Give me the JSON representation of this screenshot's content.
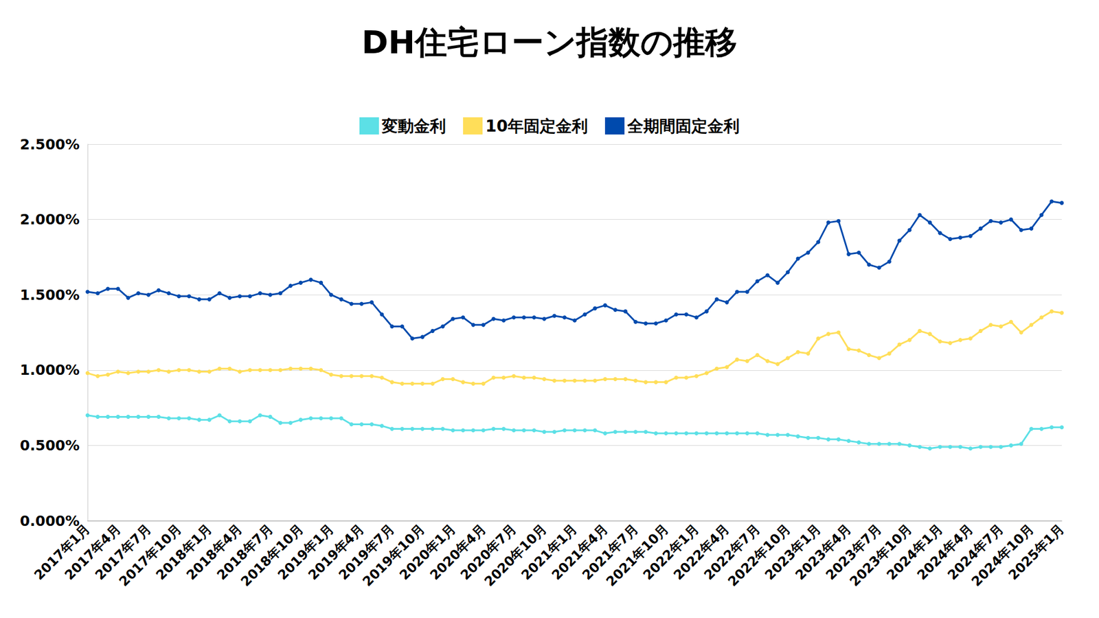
{
  "chart_data": {
    "type": "line",
    "title": "DH住宅ローン指数の推移",
    "categories": [
      "2017年1月",
      null,
      null,
      "2017年4月",
      null,
      null,
      "2017年7月",
      null,
      null,
      "2017年10月",
      null,
      null,
      "2018年1月",
      null,
      null,
      "2018年4月",
      null,
      null,
      "2018年7月",
      null,
      null,
      "2018年10月",
      null,
      null,
      "2019年1月",
      null,
      null,
      "2019年4月",
      null,
      null,
      "2019年7月",
      null,
      null,
      "2019年10月",
      null,
      null,
      "2020年1月",
      null,
      null,
      "2020年4月",
      null,
      null,
      "2020年7月",
      null,
      null,
      "2020年10月",
      null,
      null,
      "2021年1月",
      null,
      null,
      "2021年4月",
      null,
      null,
      "2021年7月",
      null,
      null,
      "2021年10月",
      null,
      null,
      "2022年1月",
      null,
      null,
      "2022年4月",
      null,
      null,
      "2022年7月",
      null,
      null,
      "2022年10月",
      null,
      null,
      "2023年1月",
      null,
      null,
      "2023年4月",
      null,
      null,
      "2023年7月",
      null,
      null,
      "2023年10月",
      null,
      null,
      "2024年1月",
      null,
      null,
      "2024年4月",
      null,
      null,
      "2024年7月",
      null,
      null,
      "2024年10月",
      null,
      null,
      "2025年1月"
    ],
    "series": [
      {
        "name": "変動金利",
        "color": "#5ce0e6",
        "values": [
          0.7,
          0.69,
          0.69,
          0.69,
          0.69,
          0.69,
          0.69,
          0.69,
          0.68,
          0.68,
          0.68,
          0.67,
          0.67,
          0.7,
          0.66,
          0.66,
          0.66,
          0.7,
          0.69,
          0.65,
          0.65,
          0.67,
          0.68,
          0.68,
          0.68,
          0.68,
          0.64,
          0.64,
          0.64,
          0.63,
          0.61,
          0.61,
          0.61,
          0.61,
          0.61,
          0.61,
          0.6,
          0.6,
          0.6,
          0.6,
          0.61,
          0.61,
          0.6,
          0.6,
          0.6,
          0.59,
          0.59,
          0.6,
          0.6,
          0.6,
          0.6,
          0.58,
          0.59,
          0.59,
          0.59,
          0.59,
          0.58,
          0.58,
          0.58,
          0.58,
          0.58,
          0.58,
          0.58,
          0.58,
          0.58,
          0.58,
          0.58,
          0.57,
          0.57,
          0.57,
          0.56,
          0.55,
          0.55,
          0.54,
          0.54,
          0.53,
          0.52,
          0.51,
          0.51,
          0.51,
          0.51,
          0.5,
          0.49,
          0.48,
          0.49,
          0.49,
          0.49,
          0.48,
          0.49,
          0.49,
          0.49,
          0.5,
          0.51,
          0.61,
          0.61,
          0.62,
          0.62
        ]
      },
      {
        "name": "10年固定金利",
        "color": "#ffde59",
        "values": [
          0.98,
          0.96,
          0.97,
          0.99,
          0.98,
          0.99,
          0.99,
          1.0,
          0.99,
          1.0,
          1.0,
          0.99,
          0.99,
          1.01,
          1.01,
          0.99,
          1.0,
          1.0,
          1.0,
          1.0,
          1.01,
          1.01,
          1.01,
          1.0,
          0.97,
          0.96,
          0.96,
          0.96,
          0.96,
          0.95,
          0.92,
          0.91,
          0.91,
          0.91,
          0.91,
          0.94,
          0.94,
          0.92,
          0.91,
          0.91,
          0.95,
          0.95,
          0.96,
          0.95,
          0.95,
          0.94,
          0.93,
          0.93,
          0.93,
          0.93,
          0.93,
          0.94,
          0.94,
          0.94,
          0.93,
          0.92,
          0.92,
          0.92,
          0.95,
          0.95,
          0.96,
          0.98,
          1.01,
          1.02,
          1.07,
          1.06,
          1.1,
          1.06,
          1.04,
          1.08,
          1.12,
          1.11,
          1.21,
          1.24,
          1.25,
          1.14,
          1.13,
          1.1,
          1.08,
          1.11,
          1.17,
          1.2,
          1.26,
          1.24,
          1.19,
          1.18,
          1.2,
          1.21,
          1.26,
          1.3,
          1.29,
          1.32,
          1.25,
          1.3,
          1.35,
          1.39,
          1.38
        ]
      },
      {
        "name": "全期間固定金利",
        "color": "#004aad",
        "values": [
          1.52,
          1.51,
          1.54,
          1.54,
          1.48,
          1.51,
          1.5,
          1.53,
          1.51,
          1.49,
          1.49,
          1.47,
          1.47,
          1.51,
          1.48,
          1.49,
          1.49,
          1.51,
          1.5,
          1.51,
          1.56,
          1.58,
          1.6,
          1.58,
          1.5,
          1.47,
          1.44,
          1.44,
          1.45,
          1.37,
          1.29,
          1.29,
          1.21,
          1.22,
          1.26,
          1.29,
          1.34,
          1.35,
          1.3,
          1.3,
          1.34,
          1.33,
          1.35,
          1.35,
          1.35,
          1.34,
          1.36,
          1.35,
          1.33,
          1.37,
          1.41,
          1.43,
          1.4,
          1.39,
          1.32,
          1.31,
          1.31,
          1.33,
          1.37,
          1.37,
          1.35,
          1.39,
          1.47,
          1.45,
          1.52,
          1.52,
          1.59,
          1.63,
          1.58,
          1.65,
          1.74,
          1.78,
          1.85,
          1.98,
          1.99,
          1.77,
          1.78,
          1.7,
          1.68,
          1.72,
          1.86,
          1.93,
          2.03,
          1.98,
          1.91,
          1.87,
          1.88,
          1.89,
          1.94,
          1.99,
          1.98,
          2.0,
          1.93,
          1.94,
          2.03,
          2.12,
          2.11
        ]
      }
    ],
    "ylim": [
      0,
      2.5
    ],
    "yticks": [
      {
        "value": 0,
        "label": "0.000%"
      },
      {
        "value": 0.5,
        "label": "0.500%"
      },
      {
        "value": 1.0,
        "label": "1.000%"
      },
      {
        "value": 1.5,
        "label": "1.500%"
      },
      {
        "value": 2.0,
        "label": "2.000%"
      },
      {
        "value": 2.5,
        "label": "2.500%"
      }
    ],
    "grid": true,
    "legend": "top",
    "marker": "circle"
  }
}
